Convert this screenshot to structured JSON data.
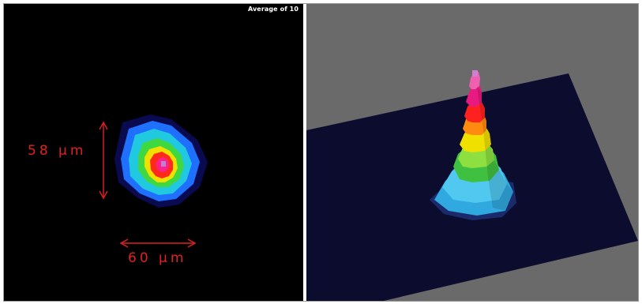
{
  "left_panel": {
    "overlay_text": "Average of 10",
    "vertical_dimension": "58 µm",
    "horizontal_dimension": "60 µm",
    "annotation_color": "#e02020",
    "background_color": "#000000"
  },
  "right_panel": {
    "background_color": "#6a6a6a",
    "plane_color": "#0c0c2e"
  }
}
